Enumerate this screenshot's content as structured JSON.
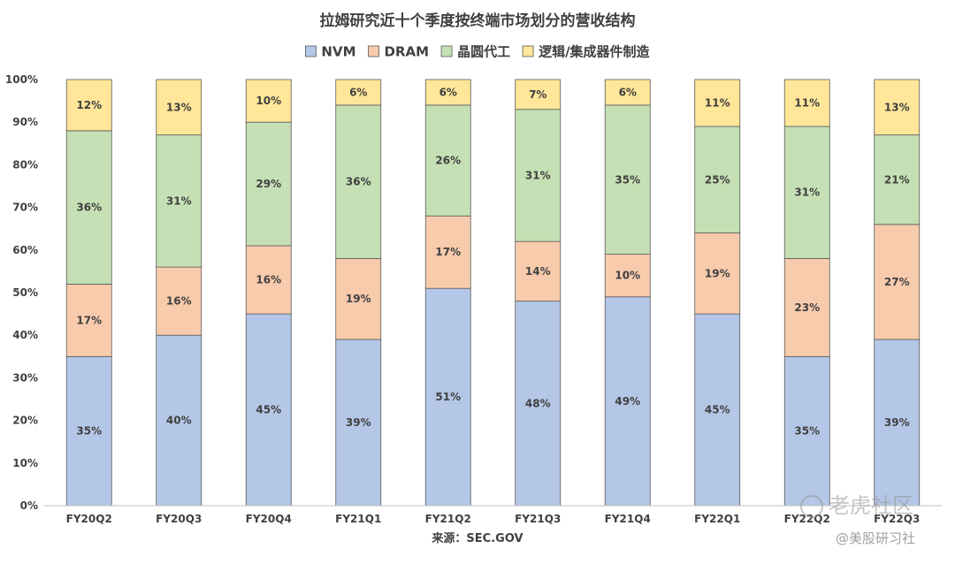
{
  "chart_data": {
    "type": "bar",
    "stacked": true,
    "title": "拉姆研究近十个季度按终端市场划分的营收结构",
    "categories": [
      "FY20Q2",
      "FY20Q3",
      "FY20Q4",
      "FY21Q1",
      "FY21Q2",
      "FY21Q3",
      "FY21Q4",
      "FY22Q1",
      "FY22Q2",
      "FY22Q3"
    ],
    "series": [
      {
        "name": "NVM",
        "values": [
          35,
          40,
          45,
          39,
          51,
          48,
          49,
          45,
          35,
          39
        ],
        "color": "#b4c7e7"
      },
      {
        "name": "DRAM",
        "values": [
          17,
          16,
          16,
          19,
          17,
          14,
          10,
          19,
          23,
          27
        ],
        "color": "#f8cbad"
      },
      {
        "name": "晶圆代工",
        "values": [
          36,
          31,
          29,
          36,
          26,
          31,
          35,
          25,
          31,
          21
        ],
        "color": "#c5e0b4"
      },
      {
        "name": "逻辑/集成器件制造",
        "values": [
          12,
          13,
          10,
          6,
          6,
          7,
          6,
          11,
          11,
          13
        ],
        "color": "#ffe699"
      }
    ],
    "ylim": [
      0,
      100
    ],
    "yticks": [
      "0%",
      "10%",
      "20%",
      "30%",
      "40%",
      "50%",
      "60%",
      "70%",
      "80%",
      "90%",
      "100%"
    ],
    "value_suffix": "%",
    "grid": false,
    "legend": "top",
    "xlabel": "",
    "ylabel": ""
  },
  "source": "来源：SEC.GOV",
  "watermark": {
    "brand": "老虎社区",
    "handle": "@美股研习社"
  }
}
